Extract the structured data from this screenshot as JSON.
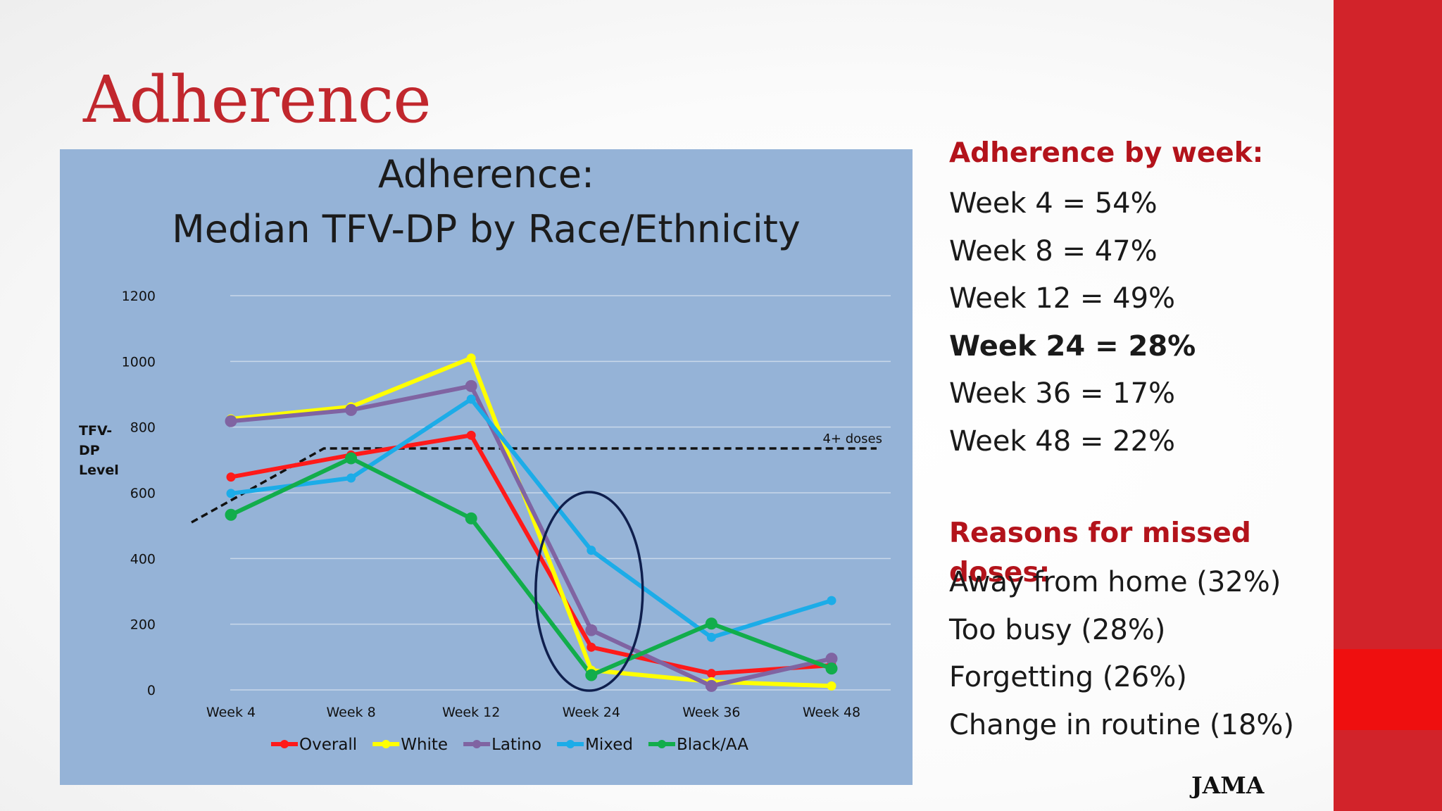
{
  "slide": {
    "title": "Adherence",
    "source": "JAMA"
  },
  "sidebar": {
    "adherence_heading": "Adherence by week:",
    "adherence_items": [
      {
        "text": "Week 4 = 54%",
        "emphasis": false
      },
      {
        "text": "Week 8 = 47%",
        "emphasis": false
      },
      {
        "text": "Week 12 = 49%",
        "emphasis": false
      },
      {
        "text": "Week 24 = 28%",
        "emphasis": true
      },
      {
        "text": "Week 36 = 17%",
        "emphasis": false
      },
      {
        "text": "Week 48 = 22%",
        "emphasis": false
      }
    ],
    "reasons_heading": "Reasons for missed doses:",
    "reasons_items": [
      "Away from home (32%)",
      "Too busy (28%)",
      "Forgetting (26%)",
      "Change in routine (18%)"
    ]
  },
  "colors": {
    "accent_red": "#c1272d",
    "chart_background": "#95b3d7"
  },
  "chart_data": {
    "type": "line",
    "title": "Adherence:",
    "subtitle": "Median TFV-DP by Race/Ethnicity",
    "ylabel": "TFV-DP Level",
    "xlabel": "",
    "categories": [
      "Week 4",
      "Week 8",
      "Week 12",
      "Week 24",
      "Week 36",
      "Week 48"
    ],
    "ylim": [
      0,
      1200
    ],
    "yticks": [
      0,
      200,
      400,
      600,
      800,
      1000,
      1200
    ],
    "grid": true,
    "legend": "bottom",
    "series": [
      {
        "name": "Overall",
        "color": "#ff1a1a",
        "values": [
          648,
          715,
          775,
          130,
          50,
          75
        ]
      },
      {
        "name": "White",
        "color": "#ffff00",
        "values": [
          825,
          862,
          1010,
          60,
          25,
          12
        ]
      },
      {
        "name": "Latino",
        "color": "#8064a2",
        "values": [
          818,
          852,
          925,
          182,
          12,
          95
        ]
      },
      {
        "name": "Mixed",
        "color": "#1cace8",
        "values": [
          598,
          645,
          885,
          425,
          160,
          272
        ]
      },
      {
        "name": "Black/AA",
        "color": "#12ad4b",
        "values": [
          533,
          705,
          522,
          45,
          202,
          65
        ]
      }
    ],
    "threshold": {
      "label": "4+ doses",
      "value": 735,
      "ramp_start_value": 510
    },
    "annotation": {
      "type": "ellipse",
      "category": "Week 24"
    }
  }
}
